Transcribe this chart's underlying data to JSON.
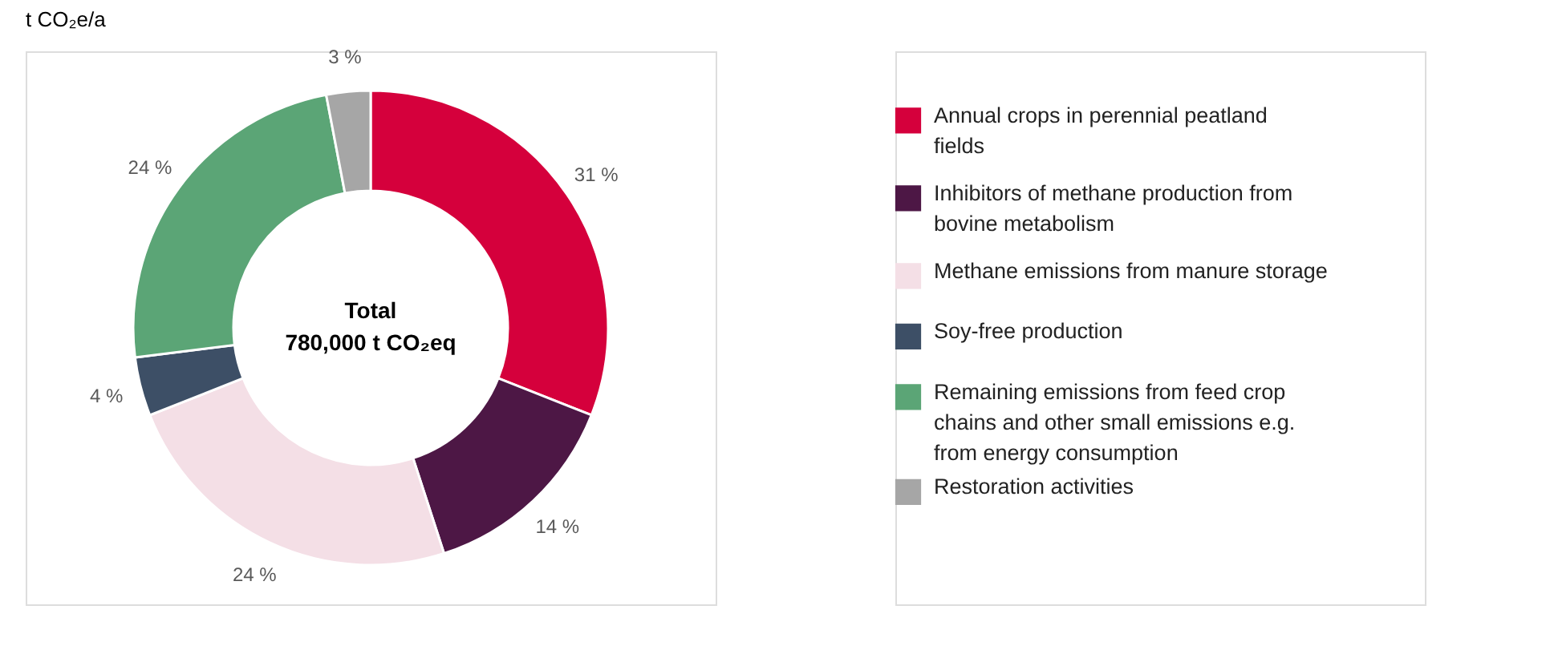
{
  "chart_data": {
    "type": "donut",
    "title": "t CO₂e/a",
    "categories": [
      "Annual crops in perennial peatland fields",
      "Inhibitors of methane production from bovine metabolism",
      "Methane emissions from manure storage",
      "Soy-free production",
      "Remaining emissions from feed crop chains and other small emissions e.g. from energy consumption",
      "Restoration activities"
    ],
    "values": [
      31,
      14,
      24,
      4,
      24,
      3
    ],
    "colors": [
      "#d5003c",
      "#4d1745",
      "#f4dfe6",
      "#3d4f66",
      "#5ba576",
      "#a6a6a6"
    ],
    "value_labels": [
      "31 %",
      "14 %",
      "24 %",
      "4 %",
      "24 %",
      "3 %"
    ],
    "annotations": [
      "Total",
      "780,000 t CO₂eq"
    ],
    "legend": "right"
  }
}
